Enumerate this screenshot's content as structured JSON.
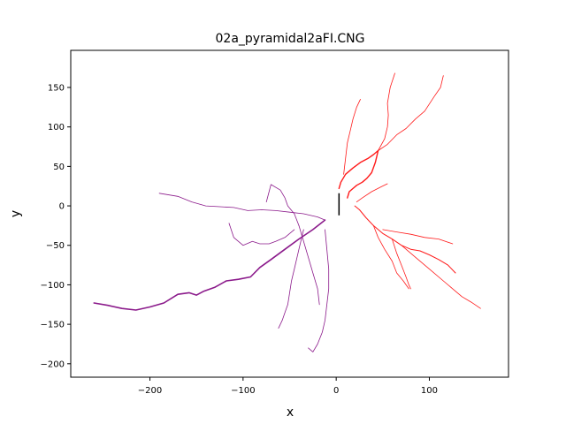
{
  "chart_data": {
    "type": "line",
    "title": "02a_pyramidal2aFI.CNG",
    "xlabel": "x",
    "ylabel": "y",
    "xlim": [
      -285,
      185
    ],
    "ylim": [
      -217,
      197
    ],
    "xticks": [
      -200,
      -100,
      0,
      100
    ],
    "yticks": [
      -200,
      -150,
      -100,
      -50,
      0,
      50,
      100,
      150
    ],
    "xtick_labels": [
      "−200",
      "−100",
      "0",
      "100"
    ],
    "ytick_labels": [
      "−200",
      "−150",
      "−100",
      "−50",
      "0",
      "50",
      "100",
      "150"
    ],
    "grid": false,
    "colors": {
      "axon": "#8b1a8b",
      "dendrite": "#ff1a1a",
      "soma": "#000000"
    },
    "soma": {
      "x": [
        3,
        3
      ],
      "y": [
        -12,
        16
      ]
    },
    "series": [
      {
        "kind": "axon",
        "width": 1.6,
        "x": [
          -12,
          -25,
          -40,
          -55,
          -70,
          -82,
          -92,
          -105,
          -118,
          -130,
          -142,
          -150,
          -158,
          -170,
          -185,
          -200,
          -215,
          -230,
          -245,
          -260
        ],
        "y": [
          -18,
          -30,
          -42,
          -55,
          -68,
          -78,
          -90,
          -93,
          -95,
          -103,
          -108,
          -113,
          -110,
          -112,
          -123,
          -128,
          -132,
          -130,
          -126,
          -123
        ]
      },
      {
        "kind": "axon",
        "width": 0.8,
        "x": [
          -12,
          -20,
          -35,
          -50,
          -65,
          -80,
          -95,
          -110,
          -125,
          -140,
          -155,
          -170,
          -190
        ],
        "y": [
          -18,
          -14,
          -10,
          -8,
          -6,
          -5,
          -6,
          -2,
          -1,
          0,
          5,
          12,
          16
        ]
      },
      {
        "kind": "axon",
        "width": 0.8,
        "x": [
          -40,
          -45,
          -52,
          -55,
          -60,
          -70,
          -75
        ],
        "y": [
          -25,
          -10,
          0,
          10,
          20,
          27,
          5
        ]
      },
      {
        "kind": "axon",
        "width": 0.8,
        "x": [
          -40,
          -35,
          -30,
          -25,
          -20,
          -18
        ],
        "y": [
          -25,
          -45,
          -65,
          -85,
          -105,
          -125
        ]
      },
      {
        "kind": "axon",
        "width": 0.8,
        "x": [
          -45,
          -55,
          -65,
          -72,
          -82,
          -90,
          -100,
          -110,
          -115
        ],
        "y": [
          -30,
          -40,
          -45,
          -48,
          -48,
          -45,
          -50,
          -40,
          -22
        ]
      },
      {
        "kind": "axon",
        "width": 0.8,
        "x": [
          -35,
          -40,
          -45,
          -48,
          -50,
          -52,
          -55,
          -58,
          -62
        ],
        "y": [
          -30,
          -55,
          -80,
          -95,
          -110,
          -125,
          -135,
          -145,
          -155
        ]
      },
      {
        "kind": "axon",
        "width": 0.8,
        "x": [
          -12,
          -10,
          -8,
          -8,
          -10,
          -12,
          -15,
          -20,
          -25,
          -30
        ],
        "y": [
          -30,
          -55,
          -80,
          -105,
          -125,
          -145,
          -160,
          -175,
          -185,
          -180
        ]
      },
      {
        "kind": "dendrite",
        "width": 1.4,
        "x": [
          3,
          5,
          10,
          18,
          26,
          34,
          40,
          45
        ],
        "y": [
          22,
          30,
          40,
          48,
          55,
          60,
          65,
          70
        ]
      },
      {
        "kind": "dendrite",
        "width": 0.8,
        "x": [
          45,
          52,
          55,
          56,
          55,
          58,
          63
        ],
        "y": [
          70,
          85,
          100,
          115,
          130,
          150,
          168
        ]
      },
      {
        "kind": "dendrite",
        "width": 0.8,
        "x": [
          8,
          10,
          12,
          15,
          18,
          22,
          26
        ],
        "y": [
          40,
          60,
          80,
          95,
          110,
          125,
          135
        ]
      },
      {
        "kind": "dendrite",
        "width": 0.8,
        "x": [
          45,
          55,
          65,
          75,
          85,
          95,
          105,
          112,
          115
        ],
        "y": [
          70,
          78,
          90,
          98,
          110,
          120,
          138,
          150,
          165
        ]
      },
      {
        "kind": "dendrite",
        "width": 1.4,
        "x": [
          12,
          14,
          18,
          22,
          28,
          33,
          38,
          42,
          45
        ],
        "y": [
          10,
          18,
          22,
          26,
          30,
          35,
          42,
          55,
          70
        ]
      },
      {
        "kind": "dendrite",
        "width": 0.8,
        "x": [
          22,
          28,
          38,
          48,
          55
        ],
        "y": [
          5,
          10,
          18,
          24,
          28
        ]
      },
      {
        "kind": "dendrite",
        "width": 1.0,
        "x": [
          20,
          25,
          32,
          40,
          50,
          60,
          70,
          80,
          90,
          100,
          110,
          120,
          128
        ],
        "y": [
          0,
          -5,
          -15,
          -25,
          -35,
          -42,
          -50,
          -55,
          -57,
          -62,
          -68,
          -75,
          -85
        ]
      },
      {
        "kind": "dendrite",
        "width": 0.8,
        "x": [
          50,
          65,
          80,
          95,
          110,
          125
        ],
        "y": [
          -30,
          -33,
          -36,
          -40,
          -42,
          -48
        ]
      },
      {
        "kind": "dendrite",
        "width": 0.8,
        "x": [
          60,
          65,
          70,
          75,
          78,
          80
        ],
        "y": [
          -42,
          -60,
          -75,
          -90,
          -100,
          -105
        ]
      },
      {
        "kind": "dendrite",
        "width": 0.8,
        "x": [
          40,
          45,
          52,
          60,
          65,
          72,
          78
        ],
        "y": [
          -25,
          -40,
          -55,
          -70,
          -85,
          -95,
          -105
        ]
      },
      {
        "kind": "dendrite",
        "width": 0.8,
        "x": [
          70,
          85,
          100,
          115,
          125,
          135,
          145,
          155
        ],
        "y": [
          -50,
          -65,
          -80,
          -95,
          -105,
          -115,
          -122,
          -130
        ]
      }
    ]
  }
}
